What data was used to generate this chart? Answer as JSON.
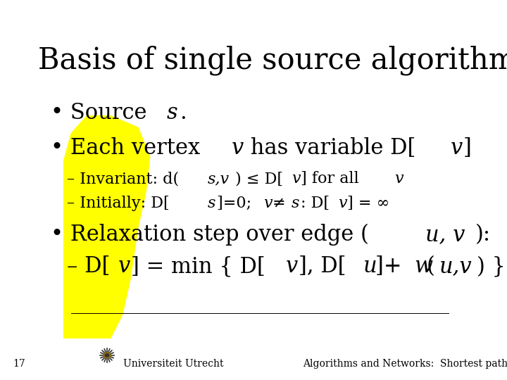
{
  "title": "Basis of single source algorithms",
  "background_color": "#ffffff",
  "slide_number": "17",
  "university": "Universiteit Utrecht",
  "footer_right": "Algorithms and Networks:  Shortest paths",
  "title_fontsize": 30,
  "large_fontsize": 22,
  "small_fontsize": 16,
  "footer_fontsize": 10,
  "text_color": "#000000",
  "yellow_color": "#ffff00"
}
